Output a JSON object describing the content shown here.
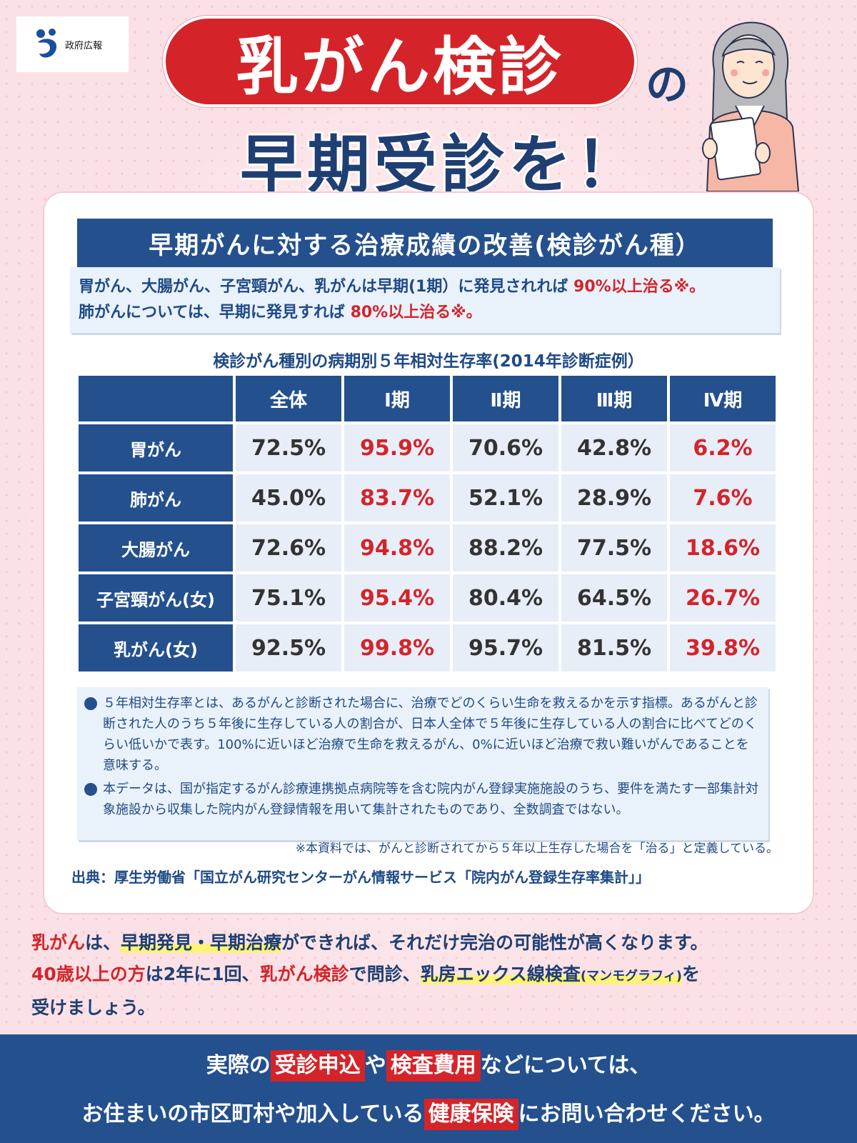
{
  "logo": {
    "text": "政府広報"
  },
  "title": {
    "main": "乳がん検診",
    "particle": "の",
    "line2": "早期受診を！"
  },
  "section": {
    "heading": "早期がんに対する治療成績の改善(検診がん種）",
    "lead1_a": "胃がん、大腸がん、子宮頸がん、乳がんは早期(1期）に発見されれば ",
    "lead1_b": "90%以上治る※。",
    "lead2_a": "肺がんについては、早期に発見すれば ",
    "lead2_b": "80%以上治る※。"
  },
  "table": {
    "title": "検診がん種別の病期別５年相対生存率(2014年診断症例）",
    "columns": [
      "全体",
      "Ⅰ期",
      "Ⅱ期",
      "Ⅲ期",
      "Ⅳ期"
    ],
    "rows": [
      {
        "label": "胃がん",
        "values": [
          "72.5%",
          "95.9%",
          "70.6%",
          "42.8%",
          "6.2%"
        ]
      },
      {
        "label": "肺がん",
        "values": [
          "45.0%",
          "83.7%",
          "52.1%",
          "28.9%",
          "7.6%"
        ]
      },
      {
        "label": "大腸がん",
        "values": [
          "72.6%",
          "94.8%",
          "88.2%",
          "77.5%",
          "18.6%"
        ]
      },
      {
        "label": "子宮頸がん(女)",
        "values": [
          "75.1%",
          "95.4%",
          "80.4%",
          "64.5%",
          "26.7%"
        ]
      },
      {
        "label": "乳がん(女)",
        "values": [
          "92.5%",
          "99.8%",
          "95.7%",
          "81.5%",
          "39.8%"
        ]
      }
    ],
    "highlight_color": "#d4242a"
  },
  "notes": [
    "５年相対生存率とは、あるがんと診断された場合に、治療でどのくらい生命を救えるかを示す指標。あるがんと診断された人のうち５年後に生存している人の割合が、日本人全体で５年後に生存している人の割合に比べてどのくらい低いかで表す。100%に近いほど治療で生命を救えるがん、0%に近いほど治療で救い難いがんであることを意味する。",
    "本データは、国が指定するがん診療連携拠点病院等を含む院内がん登録実施施設のうち、要件を満たす一部集計対象施設から収集した院内がん登録情報を用いて集計されたものであり、全数調査ではない。"
  ],
  "footnote": "※本資料では、がんと診断されてから５年以上生存した場合を「治る」と定義している。",
  "source": "出典：厚生労働省「国立がん研究センターがん情報サービス「院内がん登録生存率集計」」",
  "message": {
    "l1_a": "乳がん",
    "l1_b": "は、",
    "l1_c": "早期発見・早期治療",
    "l1_d": "ができれば、それだけ完治の可能性が高くなります。",
    "l2_a": "40歳以上の方",
    "l2_b": "は2年に1回、",
    "l2_c": "乳がん検診",
    "l2_d": "で問診、",
    "l2_e": "乳房エックス線検査",
    "l2_f": "(マンモグラフィ)",
    "l2_g": "を",
    "l3": "受けましょう。"
  },
  "banner": {
    "l1_a": "実際の",
    "l1_b": "受診申込",
    "l1_c": "や",
    "l1_d": "検査費用",
    "l1_e": "などについては、",
    "l2_a": "お住まいの市区町村や加入している",
    "l2_b": "健康保険",
    "l2_c": "にお問い合わせください。"
  },
  "colors": {
    "navy": "#24508e",
    "red": "#d4242a",
    "pink_bg": "#fbe1e6",
    "highlight": "#fff27a"
  }
}
